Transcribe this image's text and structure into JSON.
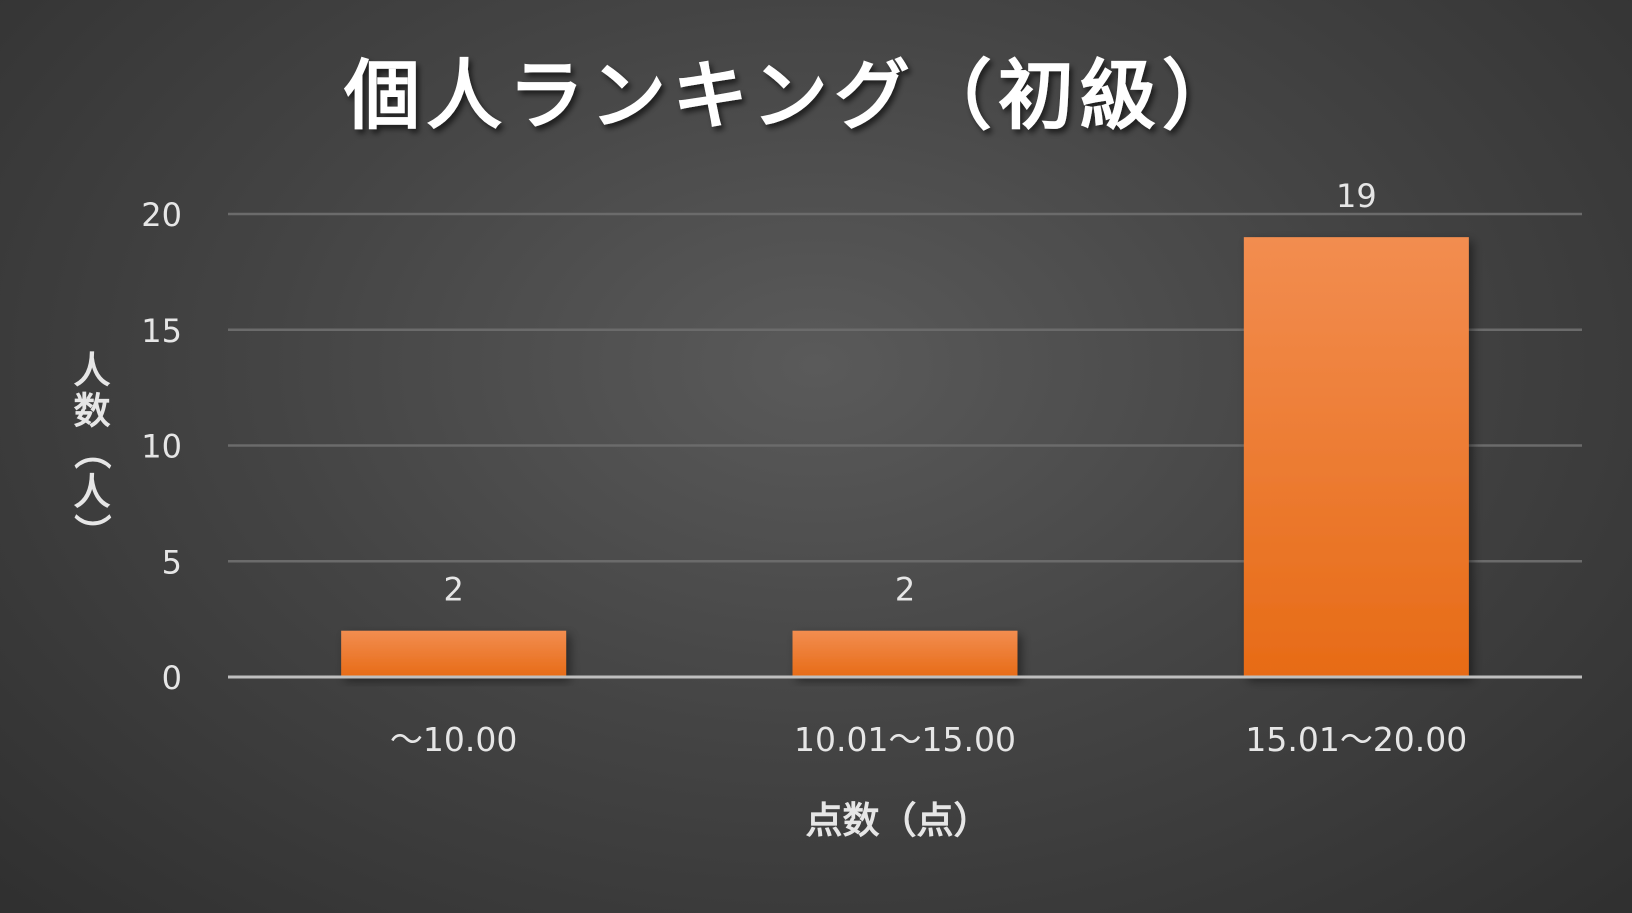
{
  "chart_data": {
    "type": "bar",
    "title": "個人ランキング（初級）",
    "xlabel": "点数（点）",
    "ylabel": "人数（人）",
    "categories": [
      "～10.00",
      "10.01～15.00",
      "15.01～20.00"
    ],
    "values": [
      2,
      2,
      19
    ],
    "data_labels": [
      "2",
      "2",
      "19"
    ],
    "ylim": [
      0,
      20
    ],
    "yticks": [
      0,
      5,
      10,
      15,
      20
    ],
    "grid": true,
    "legend": "none",
    "colors": {
      "bar_top": "#f28d50",
      "bar_bottom": "#e76b16",
      "background": "#4a4a4a",
      "gridline": "#6b6b6b",
      "axis_line": "#bfbfbf",
      "text": "#e6e6e6"
    }
  }
}
